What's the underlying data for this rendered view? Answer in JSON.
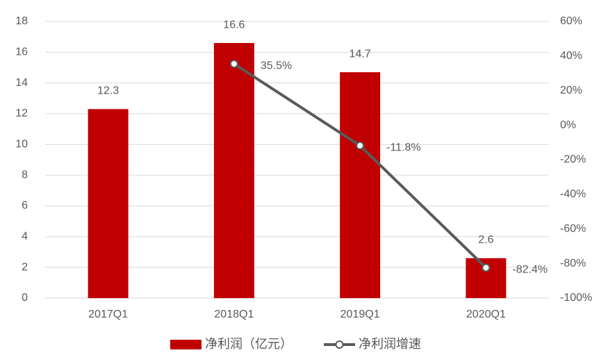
{
  "chart_data": {
    "type": "bar",
    "categories": [
      "2017Q1",
      "2018Q1",
      "2019Q1",
      "2020Q1"
    ],
    "series": [
      {
        "name": "净利润（亿元）",
        "type": "bar",
        "color": "#c00000",
        "values": [
          12.3,
          16.6,
          14.7,
          2.6
        ]
      },
      {
        "name": "净利润增速",
        "type": "line",
        "color": "#595959",
        "axis": "y2",
        "values": [
          null,
          35.5,
          -11.8,
          -82.4
        ],
        "value_labels": [
          null,
          "35.5%",
          "-11.8%",
          "-82.4%"
        ]
      }
    ],
    "ylim": [
      0,
      18
    ],
    "yticks": [
      0,
      2,
      4,
      6,
      8,
      10,
      12,
      14,
      16,
      18
    ],
    "y2lim": [
      -100,
      60
    ],
    "y2ticks": [
      {
        "value": -100,
        "label": "-100%"
      },
      {
        "value": -80,
        "label": "-80%"
      },
      {
        "value": -60,
        "label": "-60%"
      },
      {
        "value": -40,
        "label": "-40%"
      },
      {
        "value": -20,
        "label": "-20%"
      },
      {
        "value": 0,
        "label": "0%"
      },
      {
        "value": 20,
        "label": "20%"
      },
      {
        "value": 40,
        "label": "40%"
      },
      {
        "value": 60,
        "label": "60%"
      }
    ],
    "grid": true,
    "legend": "bottom"
  }
}
